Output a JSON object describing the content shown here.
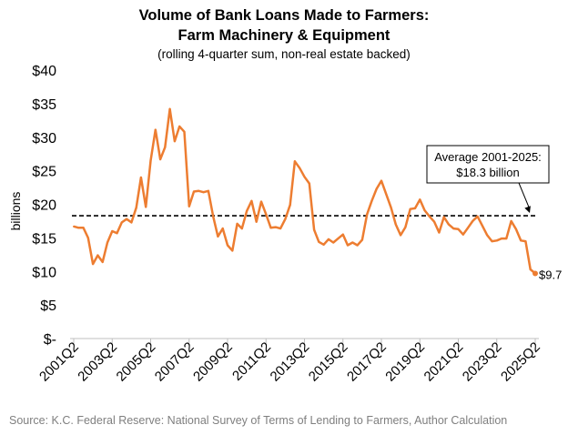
{
  "chart_data": {
    "type": "line",
    "title": "Volume of Bank Loans Made to Farmers:",
    "title_line2": "Farm Machinery & Equipment",
    "subtitle": "(rolling 4-quarter sum, non-real estate backed)",
    "ylabel": "billions",
    "xlabel": "",
    "ylim": [
      0,
      40
    ],
    "yticks": [
      0,
      5,
      10,
      15,
      20,
      25,
      30,
      35,
      40
    ],
    "ytick_labels": [
      "$-",
      "$5",
      "$10",
      "$15",
      "$20",
      "$25",
      "$30",
      "$35",
      "$40"
    ],
    "xtick_labels": [
      "2001Q2",
      "2003Q2",
      "2005Q2",
      "2007Q2",
      "2009Q2",
      "2011Q2",
      "2013Q2",
      "2015Q2",
      "2017Q2",
      "2019Q2",
      "2021Q2",
      "2023Q2",
      "2025Q2"
    ],
    "grid": false,
    "legend": "none",
    "series": [
      {
        "name": "",
        "color": "#ed7d31",
        "x": [
          "2001Q2",
          "2001Q3",
          "2001Q4",
          "2002Q1",
          "2002Q2",
          "2002Q3",
          "2002Q4",
          "2003Q1",
          "2003Q2",
          "2003Q3",
          "2003Q4",
          "2004Q1",
          "2004Q2",
          "2004Q3",
          "2004Q4",
          "2005Q1",
          "2005Q2",
          "2005Q3",
          "2005Q4",
          "2006Q1",
          "2006Q2",
          "2006Q3",
          "2006Q4",
          "2007Q1",
          "2007Q2",
          "2007Q3",
          "2007Q4",
          "2008Q1",
          "2008Q2",
          "2008Q3",
          "2008Q4",
          "2009Q1",
          "2009Q2",
          "2009Q3",
          "2009Q4",
          "2010Q1",
          "2010Q2",
          "2010Q3",
          "2010Q4",
          "2011Q1",
          "2011Q2",
          "2011Q3",
          "2011Q4",
          "2012Q1",
          "2012Q2",
          "2012Q3",
          "2012Q4",
          "2013Q1",
          "2013Q2",
          "2013Q3",
          "2013Q4",
          "2014Q1",
          "2014Q2",
          "2014Q3",
          "2014Q4",
          "2015Q1",
          "2015Q2",
          "2015Q3",
          "2015Q4",
          "2016Q1",
          "2016Q2",
          "2016Q3",
          "2016Q4",
          "2017Q1",
          "2017Q2",
          "2017Q3",
          "2017Q4",
          "2018Q1",
          "2018Q2",
          "2018Q3",
          "2018Q4",
          "2019Q1",
          "2019Q2",
          "2019Q3",
          "2019Q4",
          "2020Q1",
          "2020Q2",
          "2020Q3",
          "2020Q4",
          "2021Q1",
          "2021Q2",
          "2021Q3",
          "2021Q4",
          "2022Q1",
          "2022Q2",
          "2022Q3",
          "2022Q4",
          "2023Q1",
          "2023Q2",
          "2023Q3",
          "2023Q4",
          "2024Q1",
          "2024Q2",
          "2024Q3",
          "2024Q4",
          "2025Q1",
          "2025Q2"
        ],
        "values": [
          16.7,
          16.5,
          16.5,
          15.0,
          11.1,
          12.4,
          11.4,
          14.3,
          16.0,
          15.7,
          17.3,
          17.8,
          17.3,
          19.5,
          24.0,
          19.6,
          26.5,
          31.1,
          26.7,
          28.5,
          34.2,
          29.4,
          31.6,
          30.8,
          19.7,
          21.9,
          22.0,
          21.8,
          22.0,
          18.2,
          15.2,
          16.4,
          13.9,
          13.1,
          17.1,
          16.4,
          19.0,
          20.5,
          17.4,
          20.4,
          18.5,
          16.5,
          16.6,
          16.4,
          17.8,
          19.9,
          26.4,
          25.4,
          24.1,
          23.1,
          16.2,
          14.4,
          14.0,
          14.8,
          14.3,
          14.9,
          15.5,
          13.9,
          14.3,
          13.9,
          14.7,
          18.5,
          20.5,
          22.3,
          23.5,
          21.5,
          19.5,
          17.0,
          15.4,
          16.6,
          19.3,
          19.4,
          20.7,
          19.1,
          18.2,
          17.4,
          15.8,
          18.1,
          17.0,
          16.4,
          16.3,
          15.5,
          16.5,
          17.5,
          18.2,
          16.8,
          15.4,
          14.5,
          14.6,
          14.9,
          14.9,
          17.5,
          16.3,
          14.6,
          14.5,
          10.3,
          9.7
        ]
      }
    ],
    "reference_line": {
      "value": 18.3,
      "style": "dashed",
      "color": "#000000",
      "label_line1": "Average 2001-2025:",
      "label_line2": "$18.3 billion"
    },
    "end_label": "$9.7"
  },
  "source": "Source: K.C. Federal Reserve: National Survey of Terms of Lending to Farmers, Author Calculation"
}
